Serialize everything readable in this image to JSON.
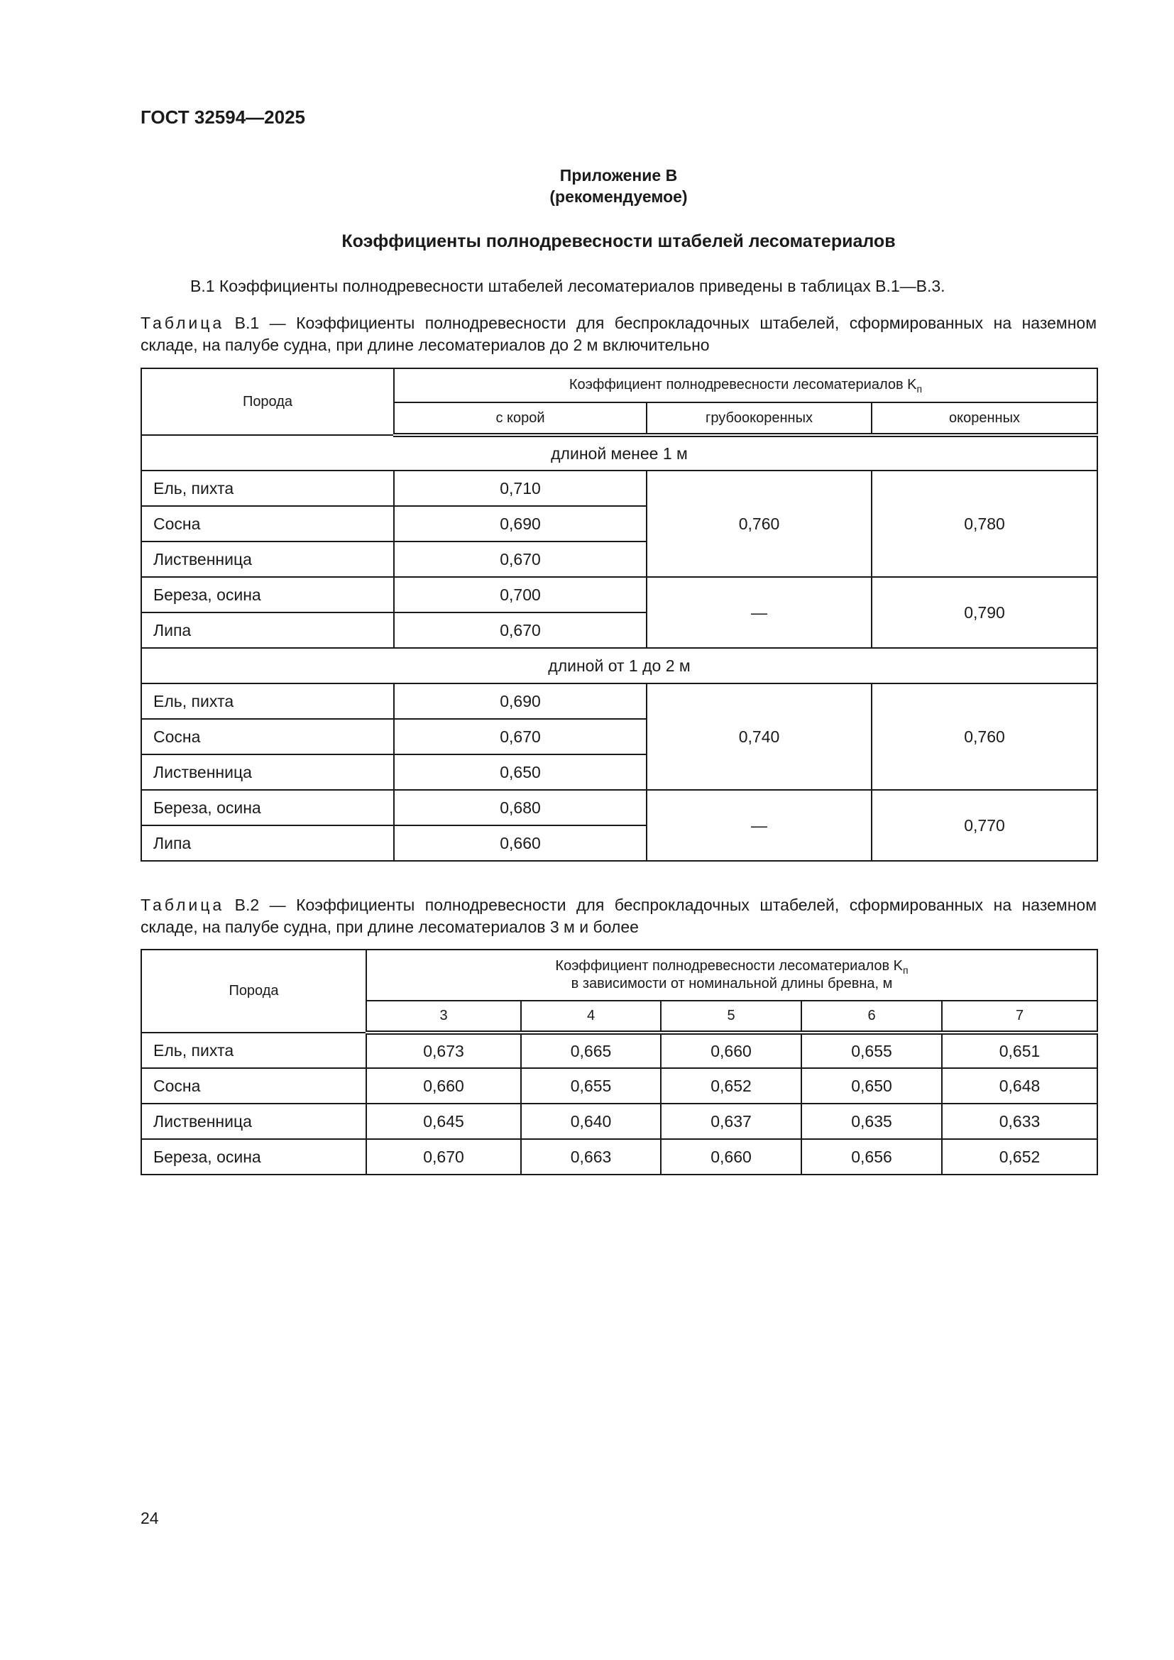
{
  "header": {
    "doc_code": "ГОСТ 32594—2025"
  },
  "annex": {
    "title": "Приложение В",
    "subtitle": "(рекомендуемое)"
  },
  "section_title": "Коэффициенты полнодревесности штабелей лесоматериалов",
  "intro": "В.1 Коэффициенты полнодревесности штабелей лесоматериалов приведены в таблицах В.1—В.3.",
  "table1": {
    "caption_label": "Таблица",
    "caption_text": "В.1 — Коэффициенты полнодревесности для беспрокладочных штабелей, сформированных на наземном складе, на палубе судна, при длине лесоматериалов до 2 м включительно",
    "col_species": "Порода",
    "col_group": "Коэффициент полнодревесности лесоматериалов K",
    "col_group_sub": "п",
    "cols": [
      "с корой",
      "грубоокоренных",
      "окоренных"
    ],
    "sections": [
      {
        "title": "длиной менее 1 м",
        "rows": [
          [
            "Ель, пихта",
            "0,710"
          ],
          [
            "Сосна",
            "0,690"
          ],
          [
            "Лиственница",
            "0,670"
          ],
          [
            "Береза, осина",
            "0,700"
          ],
          [
            "Липа",
            "0,670"
          ]
        ],
        "merged": [
          "0,760",
          "0,780",
          "—",
          "0,790"
        ]
      },
      {
        "title": "длиной от 1 до 2 м",
        "rows": [
          [
            "Ель, пихта",
            "0,690"
          ],
          [
            "Сосна",
            "0,670"
          ],
          [
            "Лиственница",
            "0,650"
          ],
          [
            "Береза, осина",
            "0,680"
          ],
          [
            "Липа",
            "0,660"
          ]
        ],
        "merged": [
          "0,740",
          "0,760",
          "—",
          "0,770"
        ]
      }
    ]
  },
  "table2": {
    "caption_label": "Таблица",
    "caption_text": "В.2 — Коэффициенты полнодревесности для беспрокладочных штабелей, сформированных на наземном складе, на палубе судна, при длине лесоматериалов 3 м и более",
    "col_species": "Порода",
    "col_group": "Коэффициент полнодревесности лесоматериалов K",
    "col_group_sub": "п",
    "col_group_line2": "в зависимости от номинальной длины бревна, м",
    "cols": [
      "3",
      "4",
      "5",
      "6",
      "7"
    ],
    "rows": [
      [
        "Ель, пихта",
        "0,673",
        "0,665",
        "0,660",
        "0,655",
        "0,651"
      ],
      [
        "Сосна",
        "0,660",
        "0,655",
        "0,652",
        "0,650",
        "0,648"
      ],
      [
        "Лиственница",
        "0,645",
        "0,640",
        "0,637",
        "0,635",
        "0,633"
      ],
      [
        "Береза, осина",
        "0,670",
        "0,663",
        "0,660",
        "0,656",
        "0,652"
      ]
    ]
  },
  "page_number": "24"
}
